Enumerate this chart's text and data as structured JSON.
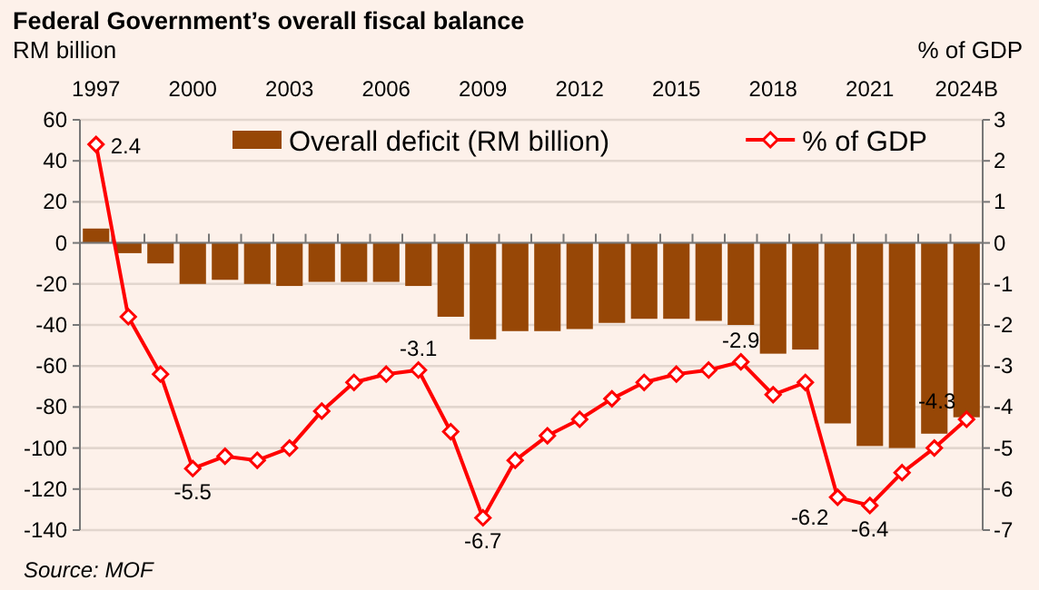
{
  "chart_data": {
    "type": "bar",
    "title": "Federal Government’s overall fiscal balance",
    "ylabel": "RM billion",
    "y2label": "% of GDP",
    "categories": [
      "1997",
      null,
      null,
      "2000",
      null,
      null,
      "2003",
      null,
      null,
      "2006",
      null,
      null,
      "2009",
      null,
      null,
      "2012",
      null,
      null,
      "2015",
      null,
      null,
      "2018",
      null,
      null,
      "2021",
      null,
      null,
      "2024B"
    ],
    "series": [
      {
        "name": "Overall deficit (RM billion)",
        "color": "#974706",
        "values": [
          7,
          -5,
          -10,
          -20,
          -18,
          -20,
          -21,
          -19,
          -19,
          -19,
          -21,
          -36,
          -47,
          -43,
          -43,
          -42,
          -39,
          -37,
          -37,
          -38,
          -40,
          -54,
          -52,
          -88,
          -99,
          -100,
          -93,
          -85
        ]
      },
      {
        "name": "% of GDP",
        "type": "line",
        "axis": "y2",
        "color": "#ff0000",
        "marker": "diamond",
        "values": [
          2.4,
          -1.8,
          -3.2,
          -5.5,
          -5.2,
          -5.3,
          -5.0,
          -4.1,
          -3.4,
          -3.2,
          -3.1,
          -4.6,
          -6.7,
          -5.3,
          -4.7,
          -4.3,
          -3.8,
          -3.4,
          -3.2,
          -3.1,
          -2.9,
          -3.7,
          -3.4,
          -6.2,
          -6.4,
          -5.6,
          -5.0,
          -4.3
        ],
        "value_labels": [
          "2.4",
          null,
          null,
          "-5.5",
          null,
          null,
          null,
          null,
          null,
          null,
          "-3.1",
          null,
          "-6.7",
          null,
          null,
          null,
          null,
          null,
          null,
          null,
          "-2.9",
          null,
          null,
          "-6.2",
          "-6.4",
          null,
          null,
          "-4.3"
        ]
      }
    ],
    "ylim": [
      -140,
      60
    ],
    "yticks": [
      -140,
      -120,
      -100,
      -80,
      -60,
      -40,
      -20,
      0,
      20,
      40,
      60
    ],
    "y2lim": [
      -7,
      3
    ],
    "y2ticks": [
      -7,
      -6,
      -5,
      -4,
      -3,
      -2,
      -1,
      0,
      1,
      2,
      3
    ],
    "grid": "y",
    "legend": "top",
    "annotations": [
      "Source:  MOF"
    ]
  }
}
